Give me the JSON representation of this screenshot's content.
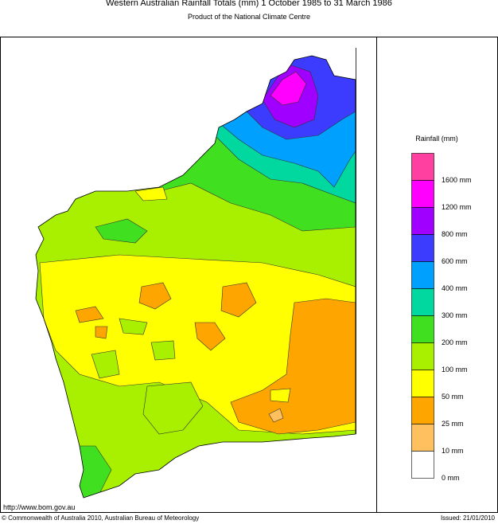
{
  "header": {
    "title": "Western Australian Rainfall Totals (mm) 1 October 1985 to 31 March 1986",
    "subtitle": "Product of the National Climate Centre"
  },
  "legend": {
    "title": "Rainfall (mm)",
    "colors": [
      "#ff40a0",
      "#ff00ff",
      "#a000ff",
      "#3c3cff",
      "#00a0ff",
      "#00d8a0",
      "#40e020",
      "#a8f000",
      "#ffff00",
      "#ffa500",
      "#ffc060",
      "#ffffff"
    ],
    "labels": [
      "1600 mm",
      "1200 mm",
      "800 mm",
      "600 mm",
      "400 mm",
      "300 mm",
      "200 mm",
      "100 mm",
      "50 mm",
      "25 mm",
      "10 mm",
      "0 mm"
    ]
  },
  "footer": {
    "url": "http://www.bom.gov.au",
    "copyright": "© Commonwealth of Australia 2010, Australian Bureau of Meteorology",
    "issued": "Issued: 21/01/2010"
  }
}
